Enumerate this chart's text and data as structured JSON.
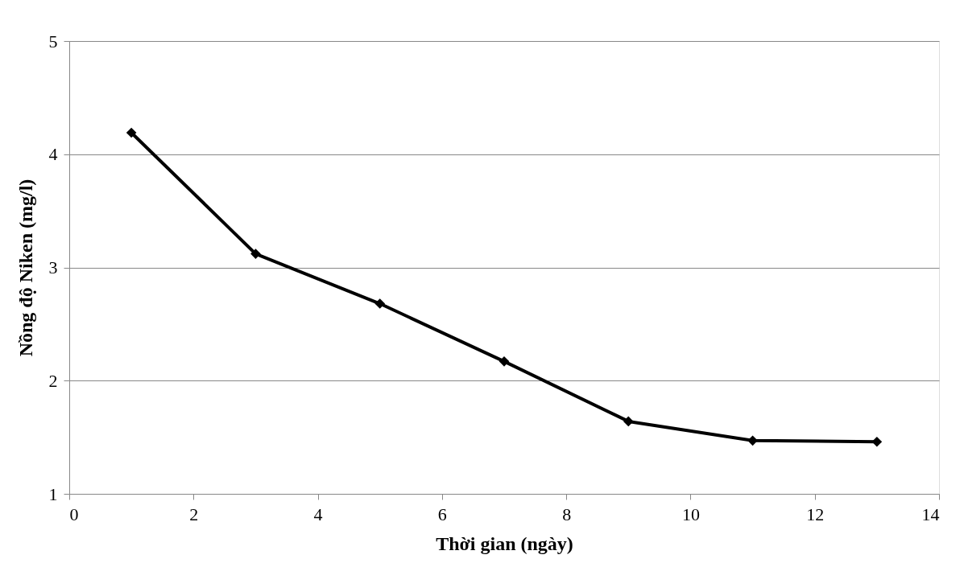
{
  "chart_data": {
    "type": "line",
    "xlabel": "Thời gian (ngày)",
    "ylabel": "Nồng độ Niken (mg/l)",
    "x": [
      1,
      3,
      5,
      7,
      9,
      11,
      13
    ],
    "series": [
      {
        "color": "#000000",
        "values": [
          4.19,
          3.12,
          2.68,
          2.17,
          1.64,
          1.47,
          1.46
        ]
      }
    ],
    "xlim": [
      0,
      14
    ],
    "xticks": [
      0,
      2,
      4,
      6,
      8,
      10,
      12,
      14
    ],
    "ylim": [
      1,
      5
    ],
    "yticks": [
      1,
      2,
      3,
      4,
      5
    ],
    "grid": "y",
    "marker": "diamond",
    "line_style": "solid",
    "legend": false
  }
}
